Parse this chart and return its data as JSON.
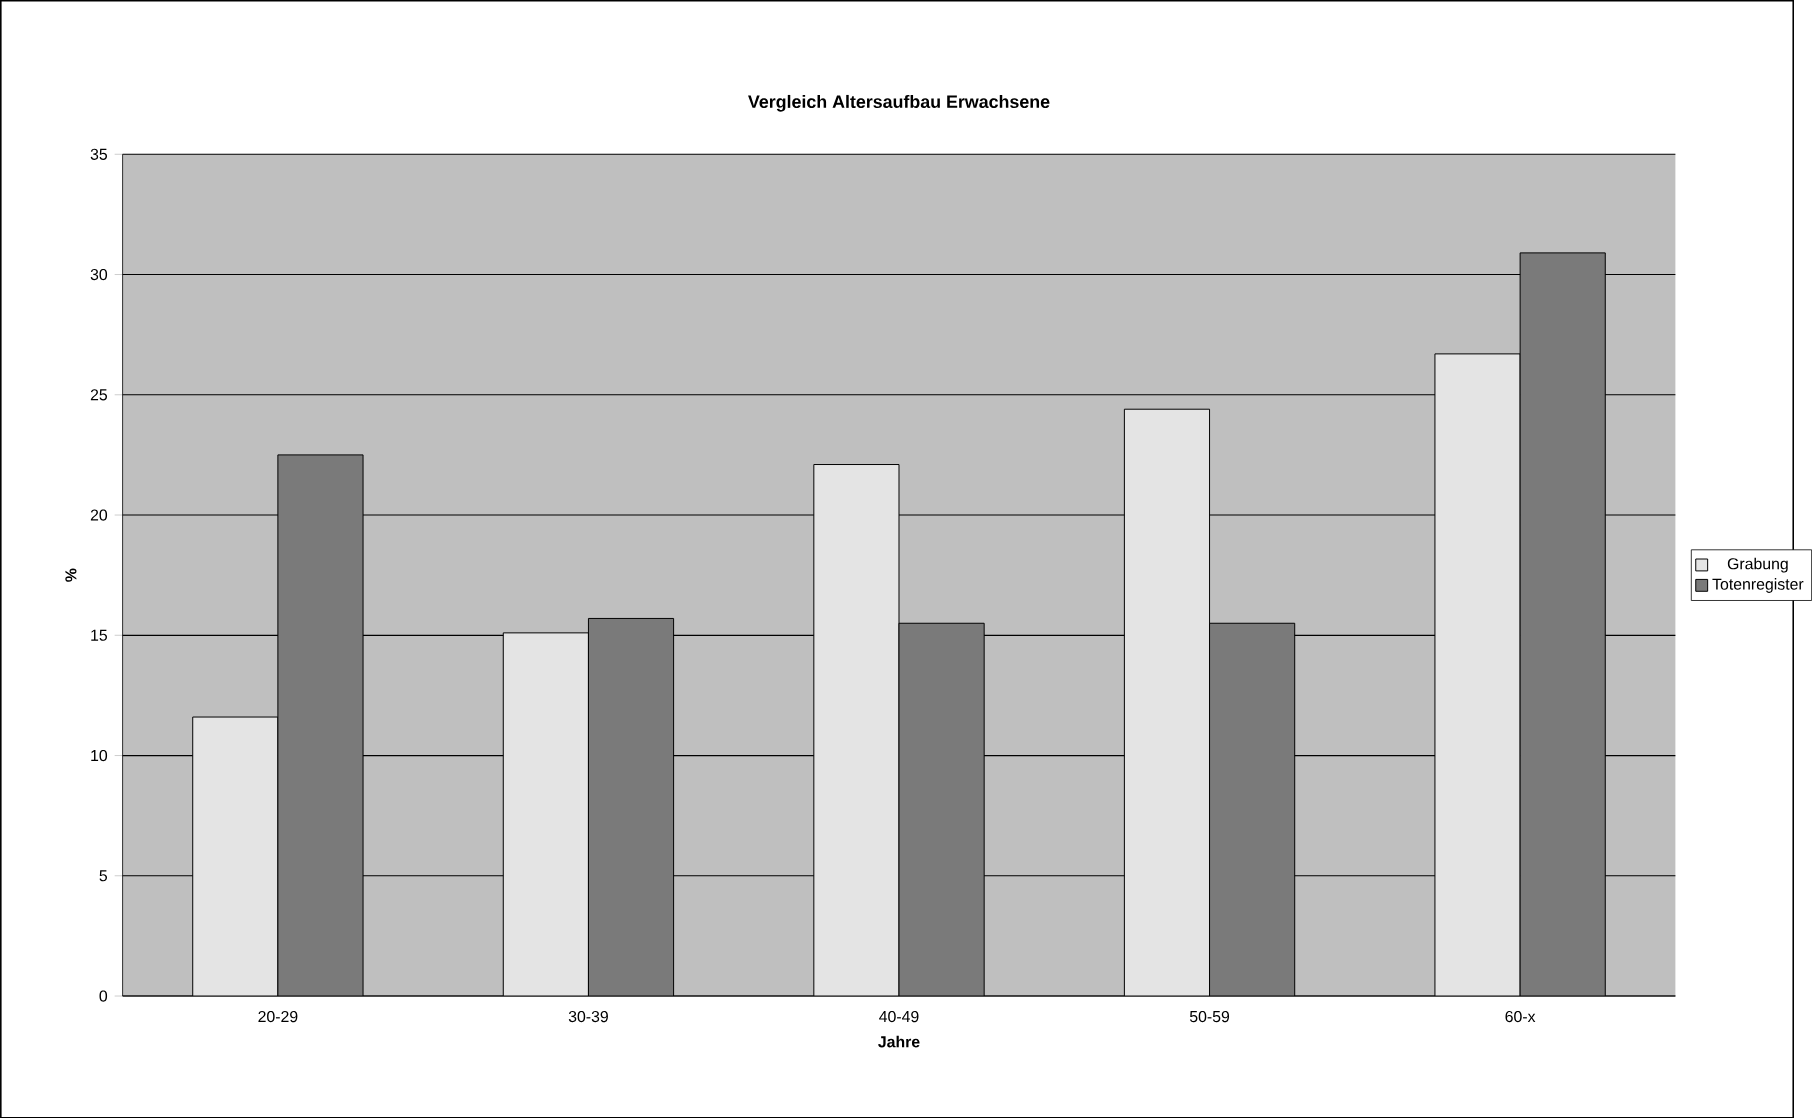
{
  "chart_data": {
    "type": "bar",
    "title": "Vergleich Altersaufbau Erwachsene",
    "xlabel": "Jahre",
    "ylabel": "%",
    "categories": [
      "20-29",
      "30-39",
      "40-49",
      "50-59",
      "60-x"
    ],
    "series": [
      {
        "name": "Grabung",
        "color": "#e4e4e4",
        "values": [
          11.6,
          15.1,
          22.1,
          24.4,
          26.7
        ]
      },
      {
        "name": "Totenregister",
        "color": "#7a7a7a",
        "values": [
          22.5,
          15.7,
          15.5,
          15.5,
          30.9
        ]
      }
    ],
    "ylim": [
      0,
      35
    ],
    "yticks": [
      0,
      5,
      10,
      15,
      20,
      25,
      30,
      35
    ],
    "grid": "y",
    "legend": "right"
  }
}
